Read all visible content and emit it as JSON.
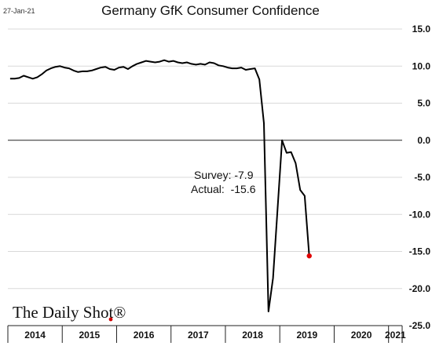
{
  "date_stamp": "27-Jan-21",
  "brand": "The Daily Shot®",
  "chart_data": {
    "type": "line",
    "title": "Germany GfK Consumer Confidence",
    "xlabel": "",
    "ylabel": "",
    "ylim": [
      -25,
      15
    ],
    "y_ticks": [
      "15.0",
      "10.0",
      "5.0",
      "0.0",
      "-5.0",
      "-10.0",
      "-15.0",
      "-20.0",
      "-25.0"
    ],
    "y_tick_values": [
      15,
      10,
      5,
      0,
      -5,
      -10,
      -15,
      -20,
      -25
    ],
    "y_axis_side": "right",
    "zero_line": true,
    "grid": true,
    "years": [
      "2014",
      "2015",
      "2016",
      "2017",
      "2018",
      "2019",
      "2020",
      "2021"
    ],
    "x_range": [
      2014.0,
      2021.25
    ],
    "annotations": [
      "Survey: -7.9",
      "Actual:  -15.6"
    ],
    "line_color": "#000000",
    "last_point_color": "#e00000",
    "series": [
      {
        "values": [
          8.3,
          8.3,
          8.4,
          8.7,
          8.5,
          8.3,
          8.5,
          8.9,
          9.4,
          9.7,
          9.9,
          10.0,
          9.8,
          9.7,
          9.4,
          9.2,
          9.3,
          9.3,
          9.4,
          9.6,
          9.8,
          9.9,
          9.6,
          9.5,
          9.8,
          9.9,
          9.6,
          10.0,
          10.3,
          10.5,
          10.7,
          10.6,
          10.5,
          10.6,
          10.8,
          10.6,
          10.7,
          10.5,
          10.4,
          10.5,
          10.3,
          10.2,
          10.3,
          10.2,
          10.5,
          10.4,
          10.1,
          10.0,
          9.8,
          9.7,
          9.7,
          9.8,
          9.5,
          9.6,
          9.7,
          8.2,
          2.3,
          -23.1,
          -18.6,
          -9.4,
          0.0,
          -1.7,
          -1.6,
          -3.1,
          -6.7,
          -7.5,
          -15.6
        ],
        "start": "2014-01",
        "frequency": "monthly"
      }
    ]
  }
}
